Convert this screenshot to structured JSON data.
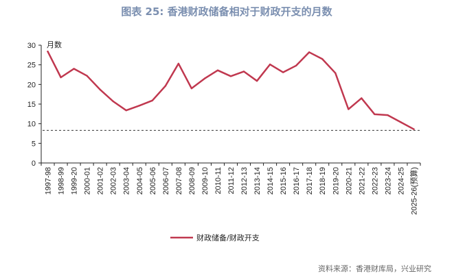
{
  "chart_data": {
    "type": "line",
    "title": "图表 25: 香港财政储备相对于财政开支的月数",
    "ylabel": "月数",
    "ylim": [
      0,
      30
    ],
    "yticks": [
      0,
      5,
      10,
      15,
      20,
      25,
      30
    ],
    "categories": [
      "1997-98",
      "1998-99",
      "1999-20",
      "2000-01",
      "2001-02",
      "2002-03",
      "2003-04",
      "2004-05",
      "2005-06",
      "2006-07",
      "2007-08",
      "2008-09",
      "2009-10",
      "2010-11",
      "2011-12",
      "2012-13",
      "2013-14",
      "2014-15",
      "2015-16",
      "2016-17",
      "2017-18",
      "2018-19",
      "2019-20",
      "2020-21",
      "2021-22",
      "2022-23",
      "2023-24",
      "2024-25",
      "2025-26(预算)"
    ],
    "series": [
      {
        "name": "财政储备/财政开支",
        "color": "#c0384f",
        "values": [
          28.4,
          21.8,
          24.0,
          22.2,
          18.7,
          15.7,
          13.4,
          14.6,
          15.9,
          19.6,
          25.3,
          19.0,
          21.5,
          23.6,
          22.1,
          23.3,
          20.9,
          25.1,
          23.1,
          24.8,
          28.2,
          26.5,
          22.9,
          13.7,
          16.5,
          12.4,
          12.2,
          10.4,
          8.6
        ]
      }
    ],
    "reference_line": {
      "value": 8.3,
      "style": "dashed",
      "color": "#333333"
    },
    "legend": "bottom",
    "grid": false
  },
  "source": "资料来源：香港财库局，兴业研究"
}
